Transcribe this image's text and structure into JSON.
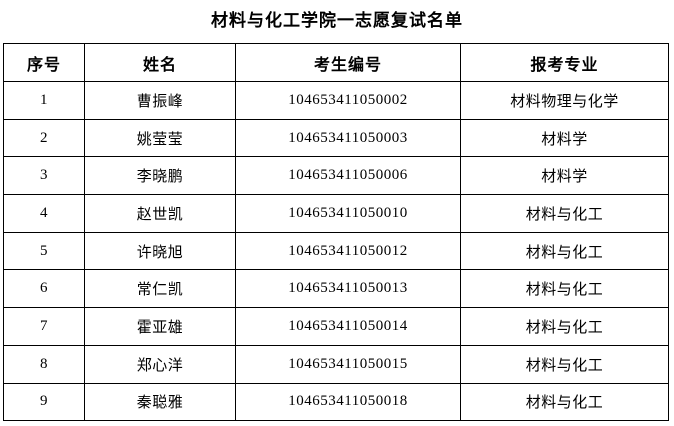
{
  "page": {
    "title": "材料与化工学院一志愿复试名单"
  },
  "table": {
    "headers": [
      "序号",
      "姓名",
      "考生编号",
      "报考专业"
    ],
    "rows": [
      [
        "1",
        "曹振峰",
        "104653411050002",
        "材料物理与化学"
      ],
      [
        "2",
        "姚莹莹",
        "104653411050003",
        "材料学"
      ],
      [
        "3",
        "李晓鹏",
        "104653411050006",
        "材料学"
      ],
      [
        "4",
        "赵世凯",
        "104653411050010",
        "材料与化工"
      ],
      [
        "5",
        "许晓旭",
        "104653411050012",
        "材料与化工"
      ],
      [
        "6",
        "常仁凯",
        "104653411050013",
        "材料与化工"
      ],
      [
        "7",
        "霍亚雄",
        "104653411050014",
        "材料与化工"
      ],
      [
        "8",
        "郑心洋",
        "104653411050015",
        "材料与化工"
      ],
      [
        "9",
        "秦聪雅",
        "104653411050018",
        "材料与化工"
      ]
    ],
    "colors": {
      "border": "#000000",
      "text": "#000000",
      "background": "#ffffff"
    }
  }
}
